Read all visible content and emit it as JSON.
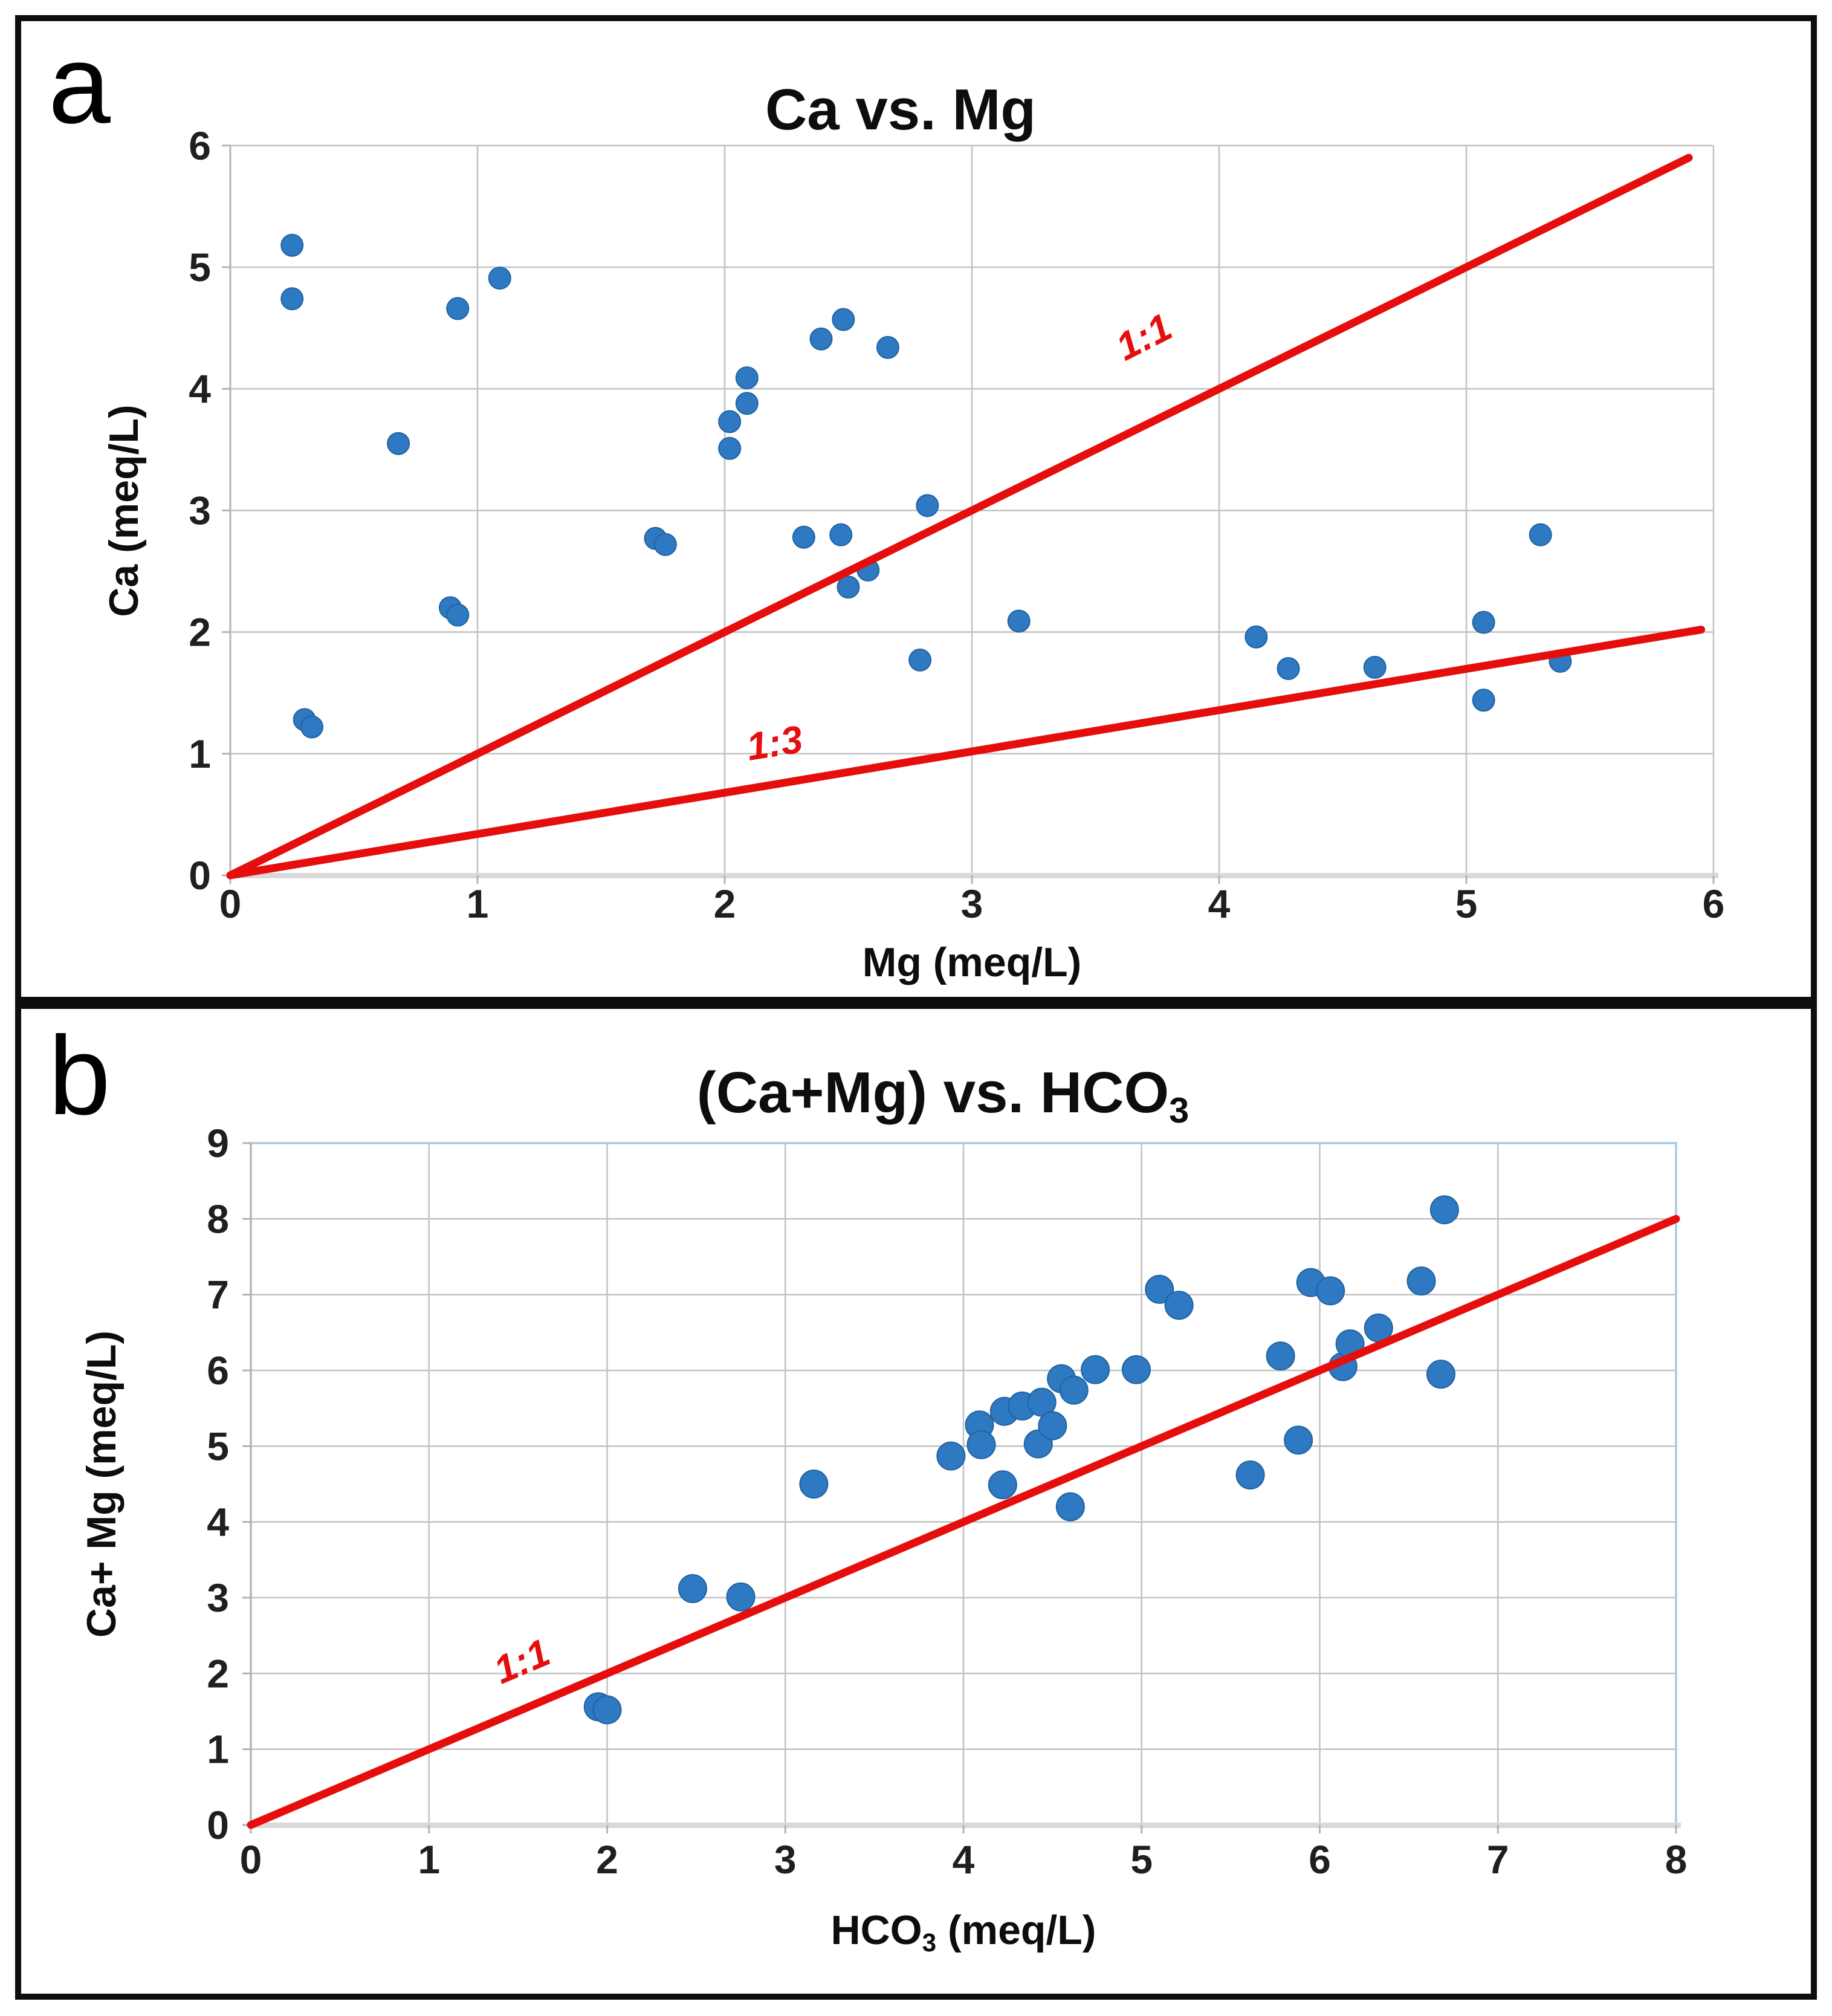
{
  "figure": {
    "background": "#ffffff",
    "panel_border_color": "#0d0d0d"
  },
  "panel_a": {
    "corner_label": "a",
    "chart_data": {
      "type": "scatter",
      "title": "Ca vs. Mg",
      "xlabel": "Mg (meq/L)",
      "ylabel": "Ca (meq/L)",
      "xlim": [
        0,
        6
      ],
      "ylim": [
        0,
        6
      ],
      "xticks": [
        "0",
        "1",
        "2",
        "3",
        "4",
        "5",
        "6"
      ],
      "yticks": [
        "0",
        "1",
        "2",
        "3",
        "4",
        "5",
        "6"
      ],
      "grid": true,
      "legend": "none",
      "marker_color": "#2e79c1",
      "marker_edge": "#2063a2",
      "ref_color": "#e60d0d",
      "points": [
        [
          0.25,
          5.18
        ],
        [
          0.25,
          4.74
        ],
        [
          0.68,
          3.55
        ],
        [
          0.92,
          4.66
        ],
        [
          1.09,
          4.91
        ],
        [
          0.89,
          2.2
        ],
        [
          0.92,
          2.14
        ],
        [
          0.3,
          1.28
        ],
        [
          0.33,
          1.22
        ],
        [
          1.72,
          2.77
        ],
        [
          1.76,
          2.72
        ],
        [
          2.02,
          3.73
        ],
        [
          2.02,
          3.51
        ],
        [
          2.09,
          4.09
        ],
        [
          2.09,
          3.88
        ],
        [
          2.39,
          4.41
        ],
        [
          2.48,
          4.57
        ],
        [
          2.66,
          4.34
        ],
        [
          2.32,
          2.78
        ],
        [
          2.47,
          2.8
        ],
        [
          2.58,
          2.51
        ],
        [
          2.5,
          2.37
        ],
        [
          2.82,
          3.04
        ],
        [
          2.79,
          1.77
        ],
        [
          3.19,
          2.09
        ],
        [
          4.15,
          1.96
        ],
        [
          4.28,
          1.7
        ],
        [
          4.63,
          1.71
        ],
        [
          5.07,
          2.08
        ],
        [
          5.07,
          1.44
        ],
        [
          5.3,
          2.8
        ],
        [
          5.38,
          1.76
        ]
      ],
      "ref_lines": [
        {
          "label": "1:1",
          "from": [
            0,
            0
          ],
          "to": [
            5.9,
            5.9
          ],
          "label_at": [
            3.72,
            4.33
          ],
          "label_rotation": -27
        },
        {
          "label": "1:3",
          "from": [
            0,
            0
          ],
          "to": [
            5.95,
            2.02
          ],
          "label_at": [
            2.21,
            0.98
          ],
          "label_rotation": -9
        }
      ]
    }
  },
  "panel_b": {
    "corner_label": "b",
    "chart_data": {
      "type": "scatter",
      "title_main": "(Ca+Mg) vs. HCO",
      "title_sub": "3",
      "xlabel_main": "HCO",
      "xlabel_sub": "3",
      "xlabel_rest": " (meq/L)",
      "ylabel": "Ca+ Mg (meq/L)",
      "xlim": [
        0,
        8
      ],
      "ylim": [
        0,
        9
      ],
      "xticks": [
        "0",
        "1",
        "2",
        "3",
        "4",
        "5",
        "6",
        "7",
        "8"
      ],
      "yticks": [
        "0",
        "1",
        "2",
        "3",
        "4",
        "5",
        "6",
        "7",
        "8",
        "9"
      ],
      "grid": true,
      "legend": "none",
      "plot_border_color": "#a5c9e9",
      "marker_color": "#2e79c1",
      "marker_edge": "#2063a2",
      "ref_color": "#e60d0d",
      "points": [
        [
          1.95,
          1.56
        ],
        [
          2.0,
          1.52
        ],
        [
          2.48,
          3.12
        ],
        [
          2.75,
          3.01
        ],
        [
          3.16,
          4.5
        ],
        [
          3.93,
          4.87
        ],
        [
          4.09,
          5.28
        ],
        [
          4.1,
          5.02
        ],
        [
          4.23,
          5.46
        ],
        [
          4.33,
          5.53
        ],
        [
          4.44,
          5.58
        ],
        [
          4.42,
          5.03
        ],
        [
          4.5,
          5.27
        ],
        [
          4.55,
          5.89
        ],
        [
          4.62,
          5.74
        ],
        [
          4.74,
          6.01
        ],
        [
          4.97,
          6.01
        ],
        [
          4.22,
          4.49
        ],
        [
          4.6,
          4.2
        ],
        [
          5.1,
          7.07
        ],
        [
          5.21,
          6.86
        ],
        [
          5.61,
          4.62
        ],
        [
          5.88,
          5.08
        ],
        [
          5.78,
          6.19
        ],
        [
          5.95,
          7.16
        ],
        [
          6.06,
          7.05
        ],
        [
          6.57,
          7.18
        ],
        [
          6.13,
          6.05
        ],
        [
          6.17,
          6.35
        ],
        [
          6.33,
          6.56
        ],
        [
          6.68,
          5.95
        ],
        [
          6.7,
          8.12
        ]
      ],
      "ref_lines": [
        {
          "label": "1:1",
          "from": [
            0,
            0
          ],
          "to": [
            8,
            8
          ],
          "label_at": [
            1.55,
            2.0
          ],
          "label_rotation": -23
        }
      ]
    }
  }
}
